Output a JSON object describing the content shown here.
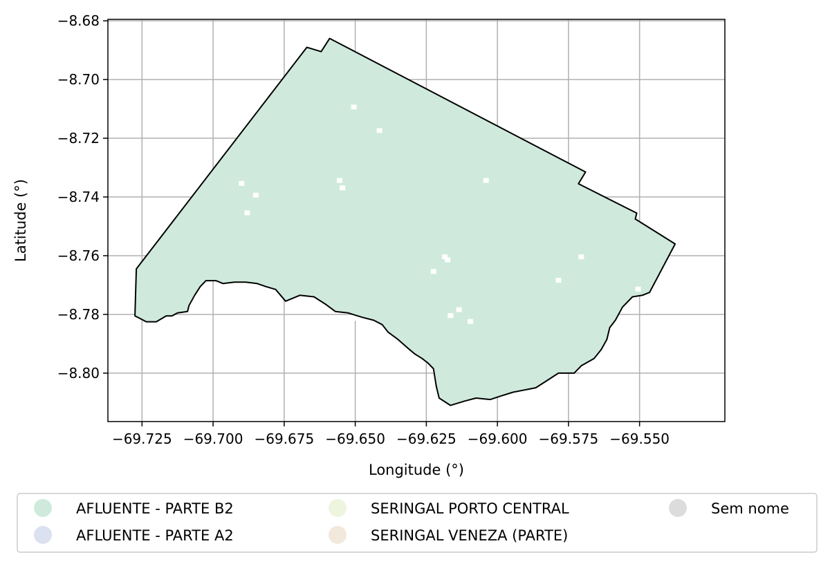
{
  "map": {
    "xlabel": "Longitude (°)",
    "ylabel": "Latitude (°)",
    "xlim": [
      -69.737,
      -69.52
    ],
    "ylim": [
      -8.8165,
      -8.6795
    ],
    "xticks": [
      -69.725,
      -69.7,
      -69.675,
      -69.65,
      -69.625,
      -69.6,
      -69.575,
      -69.55
    ],
    "yticks": [
      -8.68,
      -8.7,
      -8.72,
      -8.74,
      -8.76,
      -8.78,
      -8.8
    ],
    "xtick_labels": [
      "−69.725",
      "−69.700",
      "−69.675",
      "−69.650",
      "−69.625",
      "−69.600",
      "−69.575",
      "−69.550"
    ],
    "ytick_labels": [
      "−8.68",
      "−8.70",
      "−8.72",
      "−8.74",
      "−8.76",
      "−8.78",
      "−8.80"
    ],
    "grid": true,
    "fill_color": "#cfeadd",
    "outline_color": "#000000",
    "boundary": [
      [
        -69.7275,
        -8.7805
      ],
      [
        -69.727,
        -8.7645
      ],
      [
        -69.667,
        -8.689
      ],
      [
        -69.662,
        -8.6905
      ],
      [
        -69.659,
        -8.686
      ],
      [
        -69.569,
        -8.7315
      ],
      [
        -69.5715,
        -8.7355
      ],
      [
        -69.551,
        -8.7455
      ],
      [
        -69.5515,
        -8.7475
      ],
      [
        -69.5375,
        -8.756
      ],
      [
        -69.5465,
        -8.7725
      ],
      [
        -69.549,
        -8.7735
      ],
      [
        -69.5525,
        -8.774
      ],
      [
        -69.556,
        -8.7775
      ],
      [
        -69.5585,
        -8.782
      ],
      [
        -69.5605,
        -8.7845
      ],
      [
        -69.5615,
        -8.7885
      ],
      [
        -69.5635,
        -8.792
      ],
      [
        -69.566,
        -8.795
      ],
      [
        -69.5705,
        -8.7975
      ],
      [
        -69.573,
        -8.8
      ],
      [
        -69.5785,
        -8.8
      ],
      [
        -69.5825,
        -8.8025
      ],
      [
        -69.5865,
        -8.805
      ],
      [
        -69.5945,
        -8.8065
      ],
      [
        -69.5995,
        -8.808
      ],
      [
        -69.6025,
        -8.809
      ],
      [
        -69.6075,
        -8.8085
      ],
      [
        -69.6115,
        -8.8095
      ],
      [
        -69.6165,
        -8.811
      ],
      [
        -69.6205,
        -8.8085
      ],
      [
        -69.6215,
        -8.8045
      ],
      [
        -69.6225,
        -8.7985
      ],
      [
        -69.6245,
        -8.7965
      ],
      [
        -69.6265,
        -8.795
      ],
      [
        -69.629,
        -8.7935
      ],
      [
        -69.6315,
        -8.7915
      ],
      [
        -69.635,
        -8.7885
      ],
      [
        -69.6385,
        -8.786
      ],
      [
        -69.6405,
        -8.7835
      ],
      [
        -69.6435,
        -8.782
      ],
      [
        -69.6475,
        -8.781
      ],
      [
        -69.6525,
        -8.7795
      ],
      [
        -69.657,
        -8.779
      ],
      [
        -69.6605,
        -8.7765
      ],
      [
        -69.6645,
        -8.774
      ],
      [
        -69.6695,
        -8.7735
      ],
      [
        -69.6745,
        -8.7755
      ],
      [
        -69.678,
        -8.7715
      ],
      [
        -69.6815,
        -8.7705
      ],
      [
        -69.6845,
        -8.7695
      ],
      [
        -69.6885,
        -8.769
      ],
      [
        -69.6925,
        -8.769
      ],
      [
        -69.6965,
        -8.7695
      ],
      [
        -69.699,
        -8.7685
      ],
      [
        -69.7025,
        -8.7685
      ],
      [
        -69.7045,
        -8.7705
      ],
      [
        -69.7065,
        -8.7735
      ],
      [
        -69.7085,
        -8.777
      ],
      [
        -69.709,
        -8.779
      ],
      [
        -69.7125,
        -8.7795
      ],
      [
        -69.7145,
        -8.7805
      ],
      [
        -69.7165,
        -8.7805
      ],
      [
        -69.72,
        -8.7825
      ],
      [
        -69.7235,
        -8.7825
      ],
      [
        -69.7255,
        -8.7815
      ]
    ],
    "gaps": [
      [
        -69.6505,
        -8.7095
      ],
      [
        -69.6415,
        -8.7175
      ],
      [
        -69.6555,
        -8.7345
      ],
      [
        -69.6545,
        -8.737
      ],
      [
        -69.685,
        -8.7395
      ],
      [
        -69.688,
        -8.7455
      ],
      [
        -69.69,
        -8.7355
      ],
      [
        -69.604,
        -8.7345
      ],
      [
        -69.6175,
        -8.7615
      ],
      [
        -69.6185,
        -8.7605
      ],
      [
        -69.6225,
        -8.7655
      ],
      [
        -69.6135,
        -8.7785
      ],
      [
        -69.6165,
        -8.7805
      ],
      [
        -69.6095,
        -8.7825
      ],
      [
        -69.5785,
        -8.7685
      ],
      [
        -69.5705,
        -8.7605
      ],
      [
        -69.6505,
        -8.7815
      ],
      [
        -69.6955,
        -8.7045
      ],
      [
        -69.5505,
        -8.7715
      ]
    ],
    "legend": [
      {
        "label": "AFLUENTE  - PARTE B2",
        "color": "#cfeadd"
      },
      {
        "label": "AFLUENTE - PARTE A2",
        "color": "#dbe1f0"
      },
      {
        "label": "SERINGAL PORTO CENTRAL",
        "color": "#eef5df"
      },
      {
        "label": "SERINGAL VENEZA (PARTE)",
        "color": "#f2e8dc"
      },
      {
        "label": "Sem nome",
        "color": "#dcdcdc"
      }
    ],
    "legend_position": "below"
  }
}
